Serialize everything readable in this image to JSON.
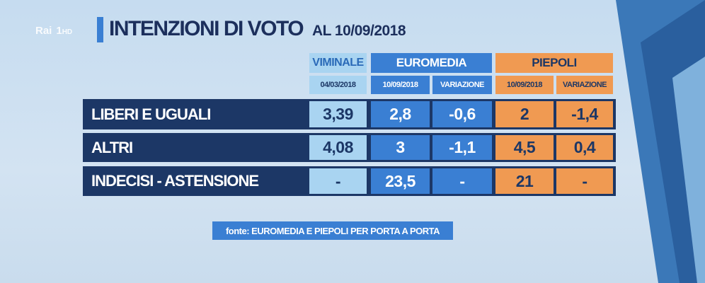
{
  "logo": {
    "brand": "Rai",
    "channel": "1",
    "hd": "HD"
  },
  "header": {
    "title": "INTENZIONI DI VOTO",
    "subtitle": "AL 10/09/2018"
  },
  "table": {
    "groups": [
      {
        "name": "VIMINALE",
        "columns": [
          "04/03/2018"
        ]
      },
      {
        "name": "EUROMEDIA",
        "columns": [
          "10/09/2018",
          "VARIAZIONE"
        ]
      },
      {
        "name": "PIEPOLI",
        "columns": [
          "10/09/2018",
          "VARIAZIONE"
        ]
      }
    ],
    "rows": [
      [
        "LIBERI E UGUALI",
        "3,39",
        "2,8",
        "-0,6",
        "2",
        "-1,4"
      ],
      [
        "ALTRI",
        "4,08",
        "3",
        "-1,1",
        "4,5",
        "0,4"
      ],
      [
        "INDECISI - ASTENSIONE",
        "-",
        "23,5",
        "-",
        "21",
        "-"
      ]
    ]
  },
  "source": "fonte: EUROMEDIA E PIEPOLI PER PORTA A PORTA"
}
